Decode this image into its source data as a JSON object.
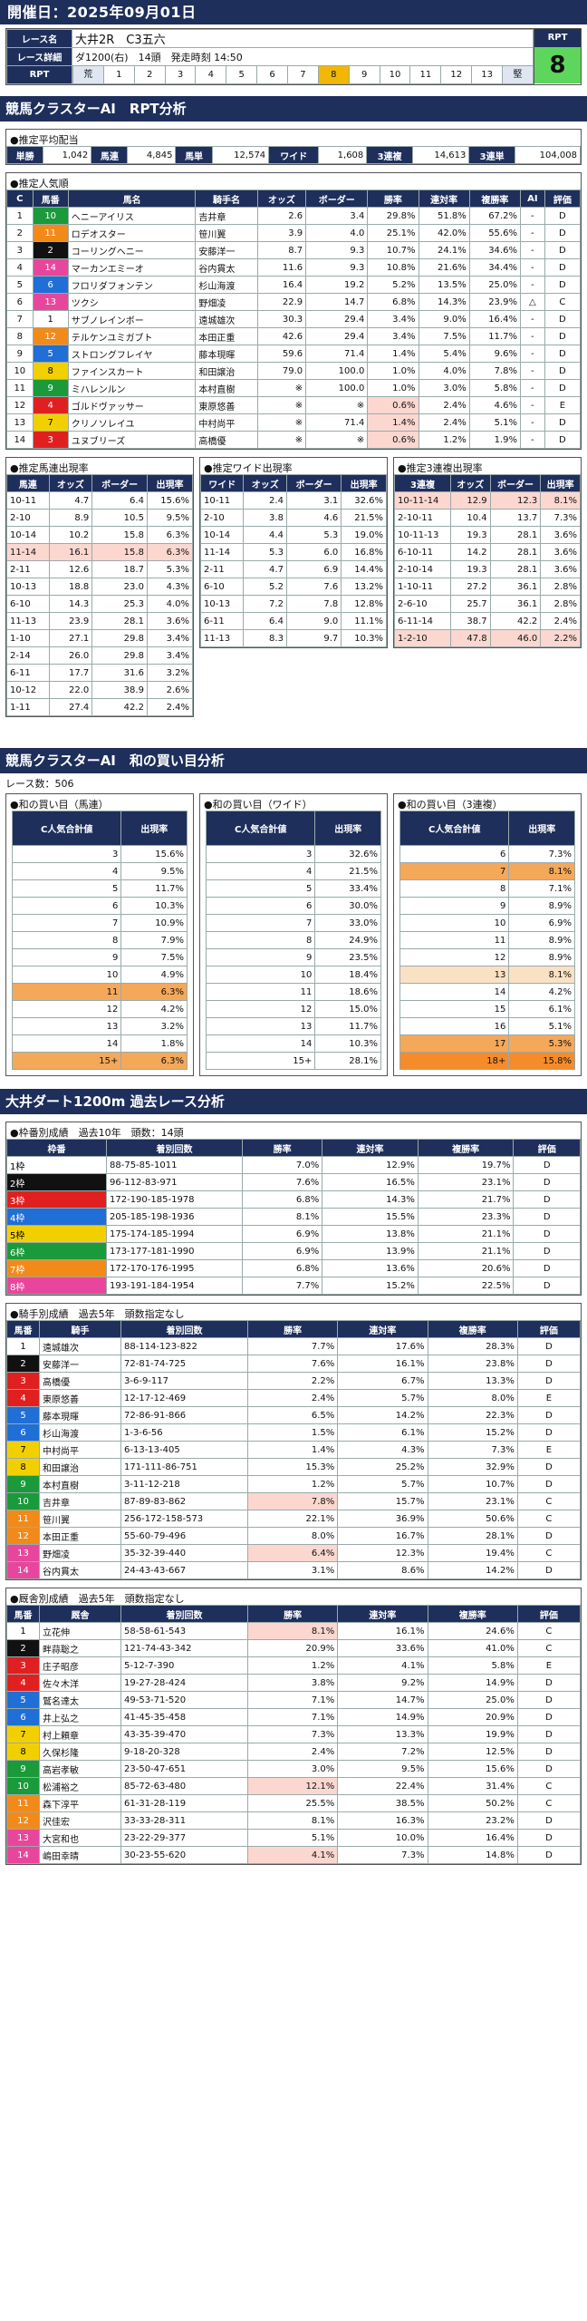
{
  "date": "開催日：2025年09月01日",
  "race_name_label": "レース名",
  "race_name": "大井2R　C3五六",
  "race_detail_label": "レース詳細",
  "race_detail": "ダ1200(右)　14頭　発走時刻 14:50",
  "rpt_label": "RPT",
  "rpt_value": "8",
  "rpt_row": {
    "label": "RPT",
    "cells": [
      "荒",
      "1",
      "2",
      "3",
      "4",
      "5",
      "6",
      "7",
      "8",
      "9",
      "10",
      "11",
      "12",
      "13",
      "堅"
    ],
    "active": "8"
  },
  "sec1_title": "競馬クラスターAI　RPT分析",
  "avg_payout": {
    "title": "●推定平均配当",
    "items": [
      [
        "単勝",
        "1,042"
      ],
      [
        "馬連",
        "4,845"
      ],
      [
        "馬単",
        "12,574"
      ],
      [
        "ワイド",
        "1,608"
      ],
      [
        "3連複",
        "14,613"
      ],
      [
        "3連単",
        "104,008"
      ]
    ]
  },
  "popularity": {
    "title": "●推定人気順",
    "headers": [
      "C",
      "馬番",
      "馬名",
      "騎手名",
      "オッズ",
      "ボーダー",
      "勝率",
      "連対率",
      "複勝率",
      "AI",
      "評価"
    ],
    "rows": [
      [
        "1",
        "10",
        "ヘニーアイリス",
        "吉井章",
        "2.6",
        "3.4",
        "29.8%",
        "51.8%",
        "67.2%",
        "-",
        "D"
      ],
      [
        "2",
        "11",
        "ロデオスター",
        "笹川翼",
        "3.9",
        "4.0",
        "25.1%",
        "42.0%",
        "55.6%",
        "-",
        "D"
      ],
      [
        "3",
        "2",
        "コーリングヘニー",
        "安藤洋一",
        "8.7",
        "9.3",
        "10.7%",
        "24.1%",
        "34.6%",
        "-",
        "D"
      ],
      [
        "4",
        "14",
        "マーカンエミーオ",
        "谷内貫太",
        "11.6",
        "9.3",
        "10.8%",
        "21.6%",
        "34.4%",
        "-",
        "D"
      ],
      [
        "5",
        "6",
        "フロリダフォンテン",
        "杉山海渡",
        "16.4",
        "19.2",
        "5.2%",
        "13.5%",
        "25.0%",
        "-",
        "D"
      ],
      [
        "6",
        "13",
        "ツクシ",
        "野畑凌",
        "22.9",
        "14.7",
        "6.8%",
        "14.3%",
        "23.9%",
        "△",
        "C"
      ],
      [
        "7",
        "1",
        "サブノレインボー",
        "遠城雄次",
        "30.3",
        "29.4",
        "3.4%",
        "9.0%",
        "16.4%",
        "-",
        "D"
      ],
      [
        "8",
        "12",
        "テルケンユミガブト",
        "本田正重",
        "42.6",
        "29.4",
        "3.4%",
        "7.5%",
        "11.7%",
        "-",
        "D"
      ],
      [
        "9",
        "5",
        "ストロングフレイヤ",
        "藤本現暉",
        "59.6",
        "71.4",
        "1.4%",
        "5.4%",
        "9.6%",
        "-",
        "D"
      ],
      [
        "10",
        "8",
        "ファインスカート",
        "和田譲治",
        "79.0",
        "100.0",
        "1.0%",
        "4.0%",
        "7.8%",
        "-",
        "D"
      ],
      [
        "11",
        "9",
        "ミハレンルン",
        "本村直樹",
        "※",
        "100.0",
        "1.0%",
        "3.0%",
        "5.8%",
        "-",
        "D"
      ],
      [
        "12",
        "4",
        "ゴルドヴァッサー",
        "東原悠善",
        "※",
        "※",
        "0.6%",
        "2.4%",
        "4.6%",
        "-",
        "E"
      ],
      [
        "13",
        "7",
        "クリノソレイユ",
        "中村尚平",
        "※",
        "71.4",
        "1.4%",
        "2.4%",
        "5.1%",
        "-",
        "D"
      ],
      [
        "14",
        "3",
        "ユヌブリーズ",
        "高橋優",
        "※",
        "※",
        "0.6%",
        "1.2%",
        "1.9%",
        "-",
        "D"
      ]
    ]
  },
  "umaren": {
    "title": "●推定馬連出現率",
    "headers": [
      "馬連",
      "オッズ",
      "ボーダー",
      "出現率"
    ],
    "rows": [
      [
        "10-11",
        "4.7",
        "6.4",
        "15.6%"
      ],
      [
        "2-10",
        "8.9",
        "10.5",
        "9.5%"
      ],
      [
        "10-14",
        "10.2",
        "15.8",
        "6.3%"
      ],
      [
        "11-14",
        "16.1",
        "15.8",
        "6.3%"
      ],
      [
        "2-11",
        "12.6",
        "18.7",
        "5.3%"
      ],
      [
        "10-13",
        "18.8",
        "23.0",
        "4.3%"
      ],
      [
        "6-10",
        "14.3",
        "25.3",
        "4.0%"
      ],
      [
        "11-13",
        "23.9",
        "28.1",
        "3.6%"
      ],
      [
        "1-10",
        "27.1",
        "29.8",
        "3.4%"
      ],
      [
        "2-14",
        "26.0",
        "29.8",
        "3.4%"
      ],
      [
        "6-11",
        "17.7",
        "31.6",
        "3.2%"
      ],
      [
        "10-12",
        "22.0",
        "38.9",
        "2.6%"
      ],
      [
        "1-11",
        "27.4",
        "42.2",
        "2.4%"
      ]
    ]
  },
  "wide": {
    "title": "●推定ワイド出現率",
    "headers": [
      "ワイド",
      "オッズ",
      "ボーダー",
      "出現率"
    ],
    "rows": [
      [
        "10-11",
        "2.4",
        "3.1",
        "32.6%"
      ],
      [
        "2-10",
        "3.8",
        "4.6",
        "21.5%"
      ],
      [
        "10-14",
        "4.4",
        "5.3",
        "19.0%"
      ],
      [
        "11-14",
        "5.3",
        "6.0",
        "16.8%"
      ],
      [
        "2-11",
        "4.7",
        "6.9",
        "14.4%"
      ],
      [
        "6-10",
        "5.2",
        "7.6",
        "13.2%"
      ],
      [
        "10-13",
        "7.2",
        "7.8",
        "12.8%"
      ],
      [
        "6-11",
        "6.4",
        "9.0",
        "11.1%"
      ],
      [
        "11-13",
        "8.3",
        "9.7",
        "10.3%"
      ]
    ]
  },
  "sanrenpuku": {
    "title": "●推定3連複出現率",
    "headers": [
      "3連複",
      "オッズ",
      "ボーダー",
      "出現率"
    ],
    "rows": [
      [
        "10-11-14",
        "12.9",
        "12.3",
        "8.1%"
      ],
      [
        "2-10-11",
        "10.4",
        "13.7",
        "7.3%"
      ],
      [
        "10-11-13",
        "19.3",
        "28.1",
        "3.6%"
      ],
      [
        "6-10-11",
        "14.2",
        "28.1",
        "3.6%"
      ],
      [
        "2-10-14",
        "19.3",
        "28.1",
        "3.6%"
      ],
      [
        "1-10-11",
        "27.2",
        "36.1",
        "2.8%"
      ],
      [
        "2-6-10",
        "25.7",
        "36.1",
        "2.8%"
      ],
      [
        "6-11-14",
        "38.7",
        "42.2",
        "2.4%"
      ],
      [
        "1-2-10",
        "47.8",
        "46.0",
        "2.2%"
      ]
    ]
  },
  "sec2_title": "競馬クラスターAI　和の買い目分析",
  "race_count": "レース数：506",
  "sum_umaren": {
    "title": "●和の買い目（馬連）",
    "h1": "C人気合計値",
    "h2": "出現率",
    "rows": [
      [
        "3",
        "15.6%"
      ],
      [
        "4",
        "9.5%"
      ],
      [
        "5",
        "11.7%"
      ],
      [
        "6",
        "10.3%"
      ],
      [
        "7",
        "10.9%"
      ],
      [
        "8",
        "7.9%"
      ],
      [
        "9",
        "7.5%"
      ],
      [
        "10",
        "4.9%"
      ],
      [
        "11",
        "6.3%"
      ],
      [
        "12",
        "4.2%"
      ],
      [
        "13",
        "3.2%"
      ],
      [
        "14",
        "1.8%"
      ],
      [
        "15+",
        "6.3%"
      ]
    ]
  },
  "sum_wide": {
    "title": "●和の買い目（ワイド）",
    "h1": "C人気合計値",
    "h2": "出現率",
    "rows": [
      [
        "3",
        "32.6%"
      ],
      [
        "4",
        "21.5%"
      ],
      [
        "5",
        "33.4%"
      ],
      [
        "6",
        "30.0%"
      ],
      [
        "7",
        "33.0%"
      ],
      [
        "8",
        "24.9%"
      ],
      [
        "9",
        "23.5%"
      ],
      [
        "10",
        "18.4%"
      ],
      [
        "11",
        "18.6%"
      ],
      [
        "12",
        "15.0%"
      ],
      [
        "13",
        "11.7%"
      ],
      [
        "14",
        "10.3%"
      ],
      [
        "15+",
        "28.1%"
      ]
    ]
  },
  "sum_3puku": {
    "title": "●和の買い目（3連複）",
    "h1": "C人気合計値",
    "h2": "出現率",
    "rows": [
      [
        "6",
        "7.3%"
      ],
      [
        "7",
        "8.1%"
      ],
      [
        "8",
        "7.1%"
      ],
      [
        "9",
        "8.9%"
      ],
      [
        "10",
        "6.9%"
      ],
      [
        "11",
        "8.9%"
      ],
      [
        "12",
        "8.9%"
      ],
      [
        "13",
        "8.1%"
      ],
      [
        "14",
        "4.2%"
      ],
      [
        "15",
        "6.1%"
      ],
      [
        "16",
        "5.1%"
      ],
      [
        "17",
        "5.3%"
      ],
      [
        "18+",
        "15.8%"
      ]
    ]
  },
  "sec3_title": "大井ダート1200m 過去レース分析",
  "waku": {
    "title": "●枠番別成績　過去10年　頭数：14頭",
    "headers": [
      "枠番",
      "着別回数",
      "勝率",
      "連対率",
      "複勝率",
      "評価"
    ],
    "rows": [
      [
        "1枠",
        "88-75-85-1011",
        "7.0%",
        "12.9%",
        "19.7%",
        "D"
      ],
      [
        "2枠",
        "96-112-83-971",
        "7.6%",
        "16.5%",
        "23.1%",
        "D"
      ],
      [
        "3枠",
        "172-190-185-1978",
        "6.8%",
        "14.3%",
        "21.7%",
        "D"
      ],
      [
        "4枠",
        "205-185-198-1936",
        "8.1%",
        "15.5%",
        "23.3%",
        "D"
      ],
      [
        "5枠",
        "175-174-185-1994",
        "6.9%",
        "13.8%",
        "21.1%",
        "D"
      ],
      [
        "6枠",
        "173-177-181-1990",
        "6.9%",
        "13.9%",
        "21.1%",
        "D"
      ],
      [
        "7枠",
        "172-170-176-1995",
        "6.8%",
        "13.6%",
        "20.6%",
        "D"
      ],
      [
        "8枠",
        "193-191-184-1954",
        "7.7%",
        "15.2%",
        "22.5%",
        "D"
      ]
    ]
  },
  "jockey": {
    "title": "●騎手別成績　過去5年　頭数指定なし",
    "headers": [
      "馬番",
      "騎手",
      "着別回数",
      "勝率",
      "連対率",
      "複勝率",
      "評価"
    ],
    "rows": [
      [
        "1",
        "遠城雄次",
        "88-114-123-822",
        "7.7%",
        "17.6%",
        "28.3%",
        "D"
      ],
      [
        "2",
        "安藤洋一",
        "72-81-74-725",
        "7.6%",
        "16.1%",
        "23.8%",
        "D"
      ],
      [
        "3",
        "高橋優",
        "3-6-9-117",
        "2.2%",
        "6.7%",
        "13.3%",
        "D"
      ],
      [
        "4",
        "東原悠善",
        "12-17-12-469",
        "2.4%",
        "5.7%",
        "8.0%",
        "E"
      ],
      [
        "5",
        "藤本現暉",
        "72-86-91-866",
        "6.5%",
        "14.2%",
        "22.3%",
        "D"
      ],
      [
        "6",
        "杉山海渡",
        "1-3-6-56",
        "1.5%",
        "6.1%",
        "15.2%",
        "D"
      ],
      [
        "7",
        "中村尚平",
        "6-13-13-405",
        "1.4%",
        "4.3%",
        "7.3%",
        "E"
      ],
      [
        "8",
        "和田譲治",
        "171-111-86-751",
        "15.3%",
        "25.2%",
        "32.9%",
        "D"
      ],
      [
        "9",
        "本村直樹",
        "3-11-12-218",
        "1.2%",
        "5.7%",
        "10.7%",
        "D"
      ],
      [
        "10",
        "吉井章",
        "87-89-83-862",
        "7.8%",
        "15.7%",
        "23.1%",
        "C"
      ],
      [
        "11",
        "笹川翼",
        "256-172-158-573",
        "22.1%",
        "36.9%",
        "50.6%",
        "C"
      ],
      [
        "12",
        "本田正重",
        "55-60-79-496",
        "8.0%",
        "16.7%",
        "28.1%",
        "D"
      ],
      [
        "13",
        "野畑凌",
        "35-32-39-440",
        "6.4%",
        "12.3%",
        "19.4%",
        "C"
      ],
      [
        "14",
        "谷内貫太",
        "24-43-43-667",
        "3.1%",
        "8.6%",
        "14.2%",
        "D"
      ]
    ]
  },
  "trainer": {
    "title": "●厩舎別成績　過去5年　頭数指定なし",
    "headers": [
      "馬番",
      "厩舎",
      "着別回数",
      "勝率",
      "連対率",
      "複勝率",
      "評価"
    ],
    "rows": [
      [
        "1",
        "立花伸",
        "58-58-61-543",
        "8.1%",
        "16.1%",
        "24.6%",
        "C"
      ],
      [
        "2",
        "畔蒜聡之",
        "121-74-43-342",
        "20.9%",
        "33.6%",
        "41.0%",
        "C"
      ],
      [
        "3",
        "庄子昭彦",
        "5-12-7-390",
        "1.2%",
        "4.1%",
        "5.8%",
        "E"
      ],
      [
        "4",
        "佐々木洋",
        "19-27-28-424",
        "3.8%",
        "9.2%",
        "14.9%",
        "D"
      ],
      [
        "5",
        "鷲名達太",
        "49-53-71-520",
        "7.1%",
        "14.7%",
        "25.0%",
        "D"
      ],
      [
        "6",
        "井上弘之",
        "41-45-35-458",
        "7.1%",
        "14.9%",
        "20.9%",
        "D"
      ],
      [
        "7",
        "村上頼章",
        "43-35-39-470",
        "7.3%",
        "13.3%",
        "19.9%",
        "D"
      ],
      [
        "8",
        "久保杉隆",
        "9-18-20-328",
        "2.4%",
        "7.2%",
        "12.5%",
        "D"
      ],
      [
        "9",
        "高岩孝敏",
        "23-50-47-651",
        "3.0%",
        "9.5%",
        "15.6%",
        "D"
      ],
      [
        "10",
        "松浦裕之",
        "85-72-63-480",
        "12.1%",
        "22.4%",
        "31.4%",
        "C"
      ],
      [
        "11",
        "森下淳平",
        "61-31-28-119",
        "25.5%",
        "38.5%",
        "50.2%",
        "C"
      ],
      [
        "12",
        "沢佳宏",
        "33-33-28-311",
        "8.1%",
        "16.3%",
        "23.2%",
        "D"
      ],
      [
        "13",
        "大宮和也",
        "23-22-29-377",
        "5.1%",
        "10.0%",
        "16.4%",
        "D"
      ],
      [
        "14",
        "嶋田幸晴",
        "30-23-55-620",
        "4.1%",
        "7.3%",
        "14.8%",
        "D"
      ]
    ]
  },
  "colors": {
    "waku": [
      "#ffffff",
      "#111111",
      "#e02020",
      "#1f6fd6",
      "#f2d000",
      "#1a9a3a",
      "#f28a1a",
      "#e8469c"
    ],
    "uma": {
      "1": "#ffffff",
      "2": "#111111",
      "3": "#e02020",
      "4": "#e02020",
      "5": "#1f6fd6",
      "6": "#1f6fd6",
      "7": "#f2d000",
      "8": "#f2d000",
      "9": "#1a9a3a",
      "10": "#1a9a3a",
      "11": "#f28a1a",
      "12": "#f28a1a",
      "13": "#e8469c",
      "14": "#e8469c"
    }
  }
}
